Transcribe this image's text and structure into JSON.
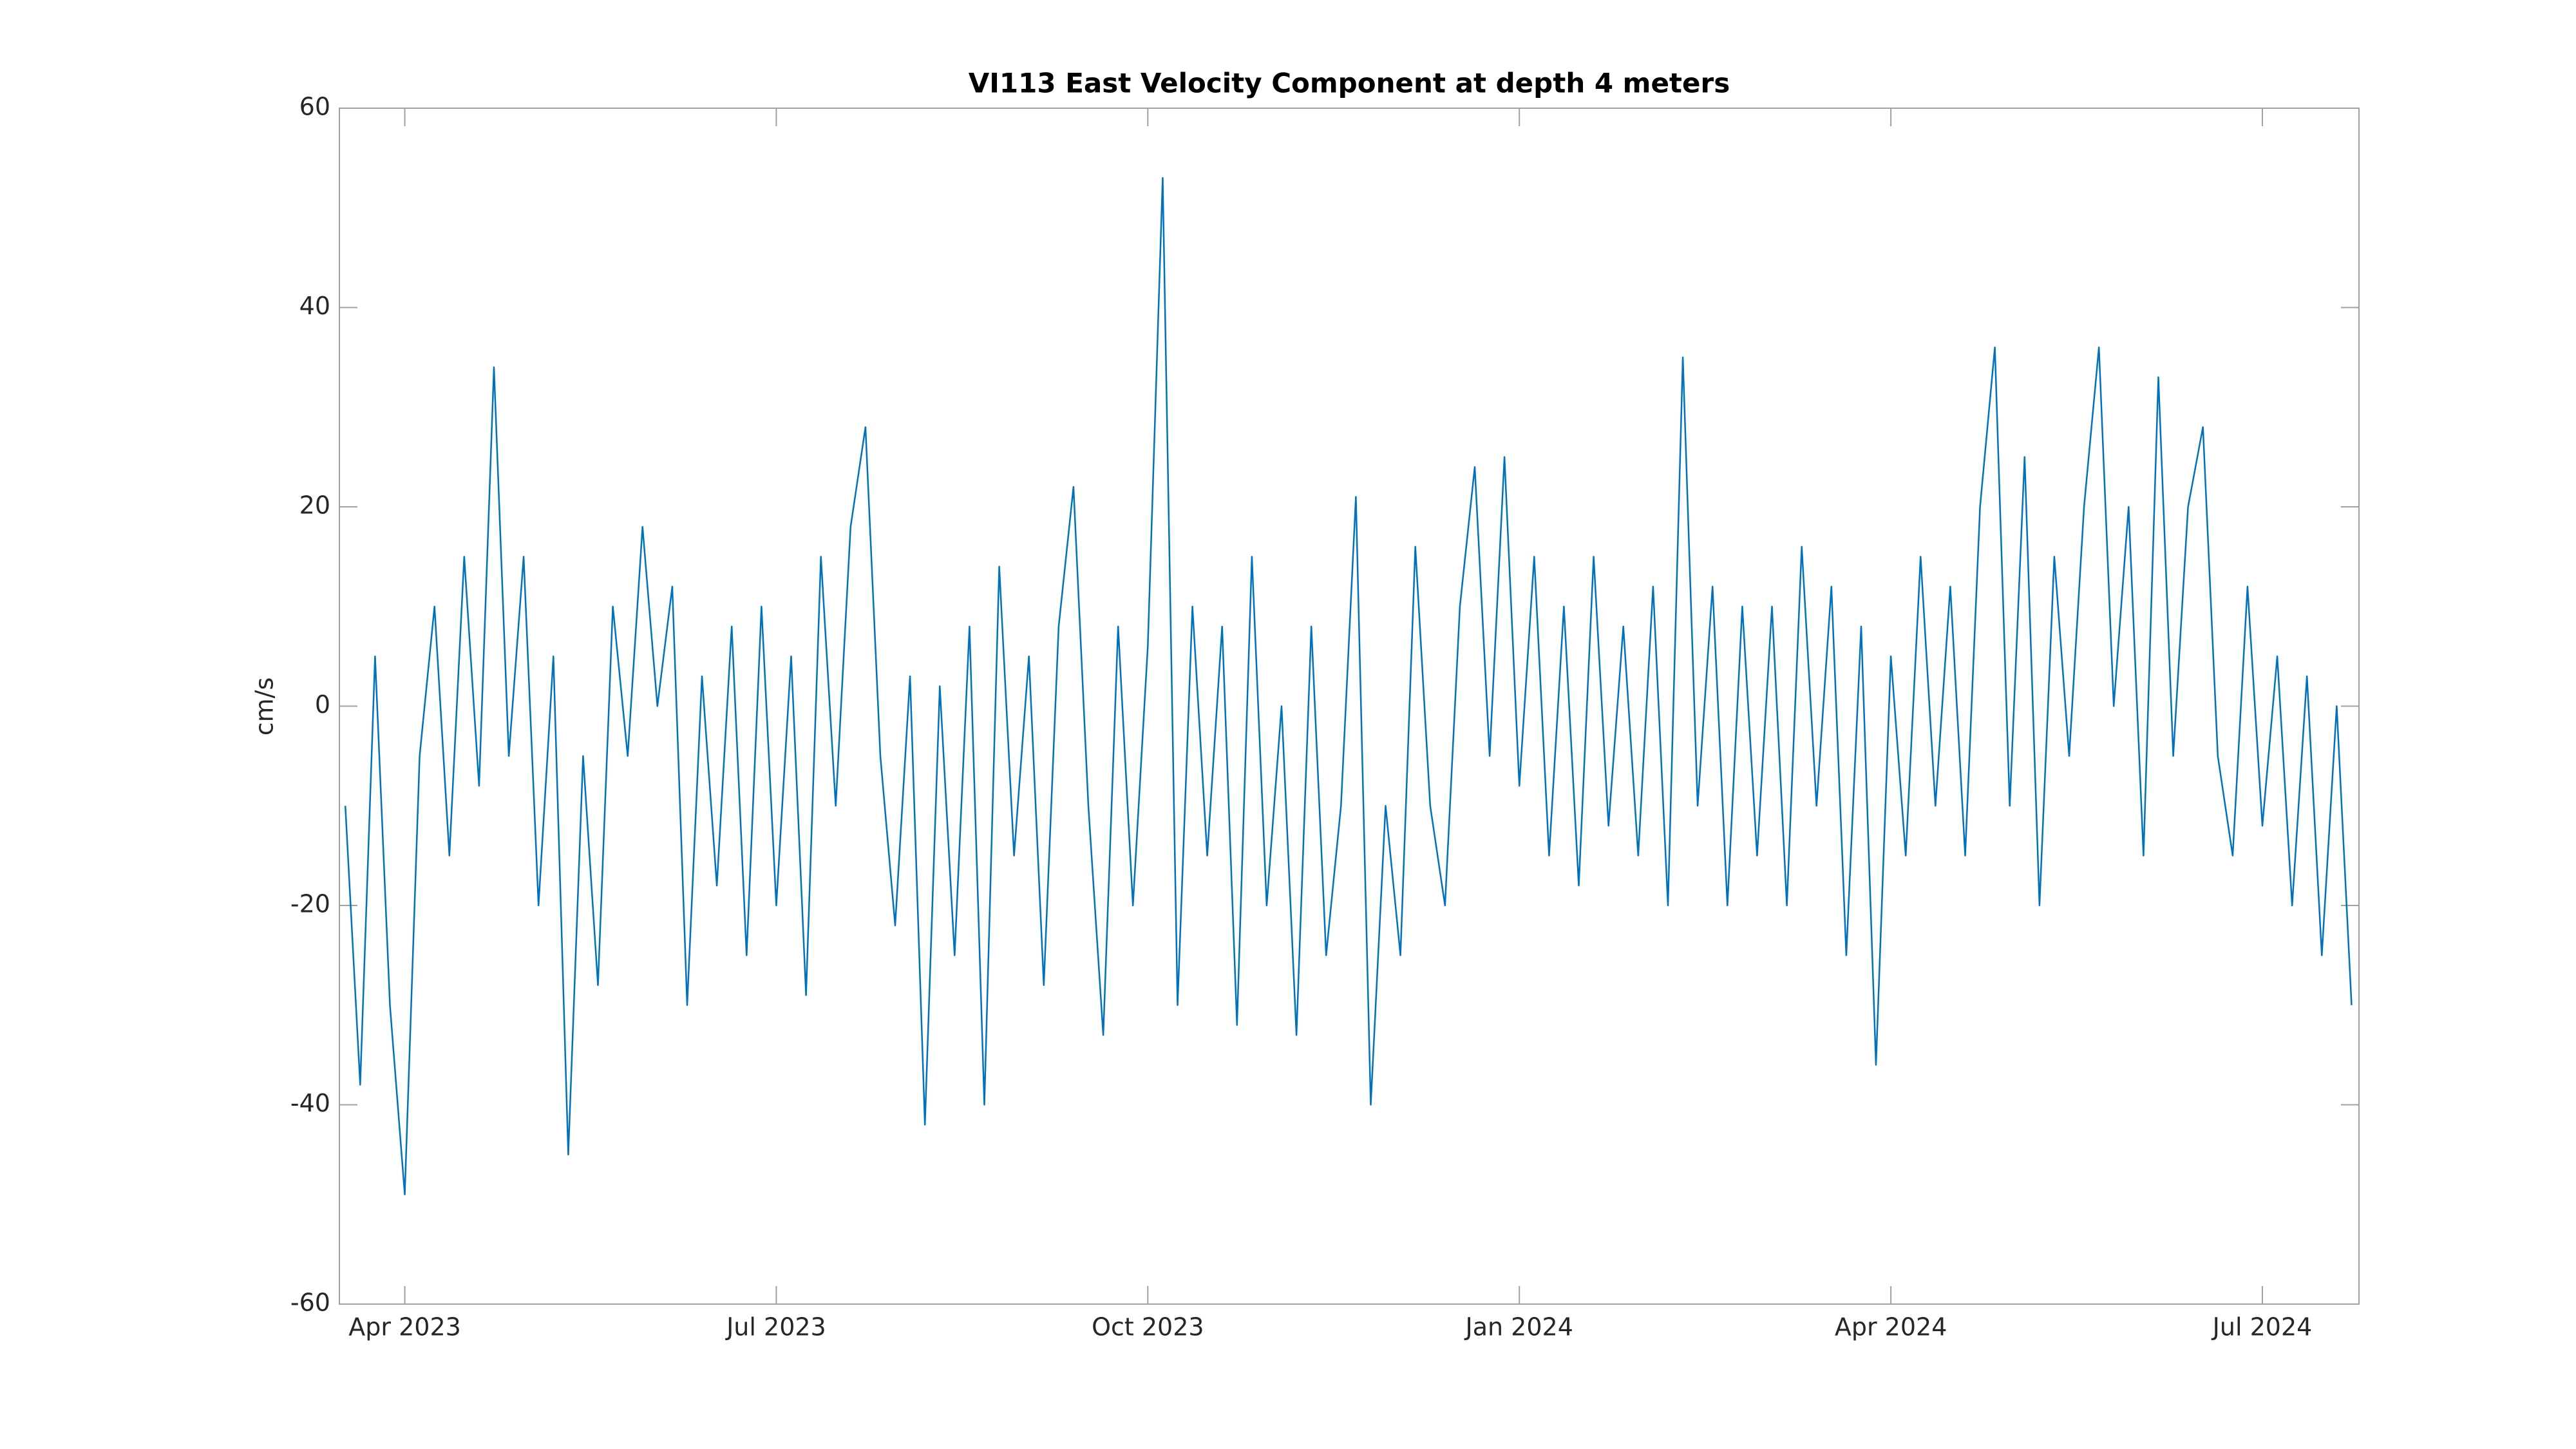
{
  "chart_data": {
    "type": "line",
    "title": "VI113 East Velocity Component at depth 4 meters",
    "ylabel": "cm/s",
    "x": [
      2023.21,
      2023.22,
      2023.23,
      2023.24,
      2023.25,
      2023.26,
      2023.27,
      2023.28,
      2023.29,
      2023.3,
      2023.31,
      2023.32,
      2023.33,
      2023.34,
      2023.35,
      2023.36,
      2023.37,
      2023.38,
      2023.39,
      2023.4,
      2023.41,
      2023.42,
      2023.43,
      2023.44,
      2023.45,
      2023.46,
      2023.47,
      2023.48,
      2023.49,
      2023.5,
      2023.51,
      2023.52,
      2023.53,
      2023.54,
      2023.55,
      2023.56,
      2023.57,
      2023.58,
      2023.59,
      2023.6,
      2023.61,
      2023.62,
      2023.63,
      2023.64,
      2023.65,
      2023.66,
      2023.67,
      2023.68,
      2023.69,
      2023.7,
      2023.71,
      2023.72,
      2023.73,
      2023.74,
      2023.75,
      2023.76,
      2023.77,
      2023.78,
      2023.79,
      2023.8,
      2023.81,
      2023.82,
      2023.83,
      2023.84,
      2023.85,
      2023.86,
      2023.87,
      2023.88,
      2023.89,
      2023.9,
      2023.91,
      2023.92,
      2023.93,
      2023.94,
      2023.95,
      2023.96,
      2023.97,
      2023.98,
      2023.99,
      2024.0,
      2024.01,
      2024.02,
      2024.03,
      2024.04,
      2024.05,
      2024.06,
      2024.07,
      2024.08,
      2024.09,
      2024.1,
      2024.11,
      2024.12,
      2024.13,
      2024.14,
      2024.15,
      2024.16,
      2024.17,
      2024.18,
      2024.19,
      2024.2,
      2024.21,
      2024.22,
      2024.23,
      2024.24,
      2024.25,
      2024.26,
      2024.27,
      2024.28,
      2024.29,
      2024.3,
      2024.31,
      2024.32,
      2024.33,
      2024.34,
      2024.35,
      2024.36,
      2024.37,
      2024.38,
      2024.39,
      2024.4,
      2024.41,
      2024.42,
      2024.43,
      2024.44,
      2024.45,
      2024.46,
      2024.47,
      2024.48,
      2024.49,
      2024.5,
      2024.51,
      2024.52,
      2024.53,
      2024.54,
      2024.55,
      2024.56
    ],
    "series": [
      {
        "color": "#0072bd",
        "values": [
          -10,
          -38,
          5,
          -30,
          -49,
          -5,
          10,
          -15,
          15,
          -8,
          34,
          -5,
          15,
          -20,
          5,
          -45,
          -5,
          -28,
          10,
          -5,
          18,
          0,
          12,
          -30,
          3,
          -18,
          8,
          -25,
          10,
          -20,
          5,
          -29,
          15,
          -10,
          18,
          28,
          -5,
          -22,
          3,
          -42,
          2,
          -25,
          8,
          -40,
          14,
          -15,
          5,
          -28,
          8,
          22,
          -10,
          -33,
          8,
          -20,
          6,
          53,
          -30,
          10,
          -15,
          8,
          -32,
          15,
          -20,
          0,
          -33,
          8,
          -25,
          -10,
          21,
          -40,
          -10,
          -25,
          16,
          -10,
          -20,
          10,
          24,
          -5,
          25,
          -8,
          15,
          -15,
          10,
          -18,
          15,
          -12,
          8,
          -15,
          12,
          -20,
          35,
          -10,
          12,
          -20,
          10,
          -15,
          10,
          -20,
          16,
          -10,
          12,
          -25,
          8,
          -36,
          5,
          -15,
          15,
          -10,
          12,
          -15,
          20,
          36,
          -10,
          25,
          -20,
          15,
          -5,
          20,
          36,
          0,
          20,
          -15,
          33,
          -5,
          20,
          28,
          -5,
          -15,
          12,
          -12,
          5,
          -20,
          3,
          -25,
          0,
          -30
        ]
      }
    ],
    "xlim": [
      2023.206,
      2024.565
    ],
    "xticks": [
      {
        "value": 2023.25,
        "label": "Apr 2023"
      },
      {
        "value": 2023.5,
        "label": "Jul 2023"
      },
      {
        "value": 2023.75,
        "label": "Oct 2023"
      },
      {
        "value": 2024.0,
        "label": "Jan 2024"
      },
      {
        "value": 2024.25,
        "label": "Apr 2024"
      },
      {
        "value": 2024.5,
        "label": "Jul 2024"
      }
    ],
    "ylim": [
      -60,
      60
    ],
    "yticks": [
      -60,
      -40,
      -20,
      0,
      20,
      40,
      60
    ]
  }
}
